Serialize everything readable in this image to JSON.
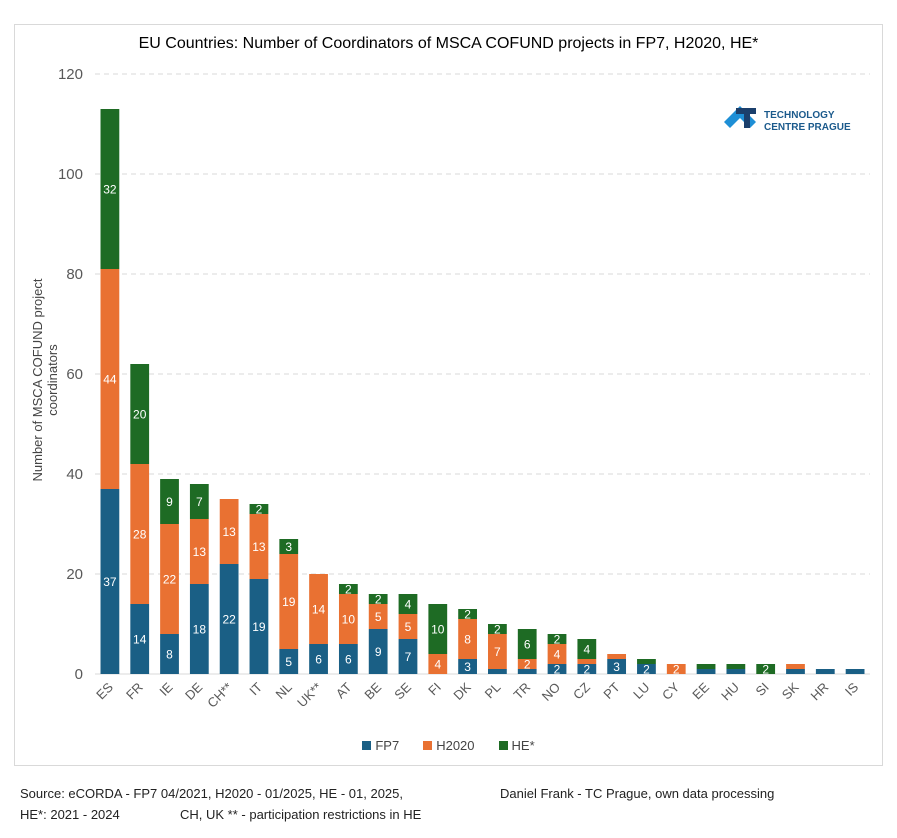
{
  "chart_data": {
    "type": "bar",
    "stacked": true,
    "title": "EU Countries: Number of Coordinators of MSCA COFUND projects in FP7, H2020, HE*",
    "xlabel": "",
    "ylabel": "Number of MSCA COFUND project coordinators",
    "ylim": [
      0,
      120
    ],
    "yticks": [
      0,
      20,
      40,
      60,
      80,
      100,
      120
    ],
    "grid": true,
    "legend_position": "bottom",
    "categories": [
      "ES",
      "FR",
      "IE",
      "DE",
      "CH**",
      "IT",
      "NL",
      "UK**",
      "AT",
      "BE",
      "SE",
      "FI",
      "DK",
      "PL",
      "TR",
      "NO",
      "CZ",
      "PT",
      "LU",
      "CY",
      "EE",
      "HU",
      "SI",
      "SK",
      "HR",
      "IS"
    ],
    "series": [
      {
        "name": "FP7",
        "color": "#1a5f85",
        "values": [
          37,
          14,
          8,
          18,
          22,
          19,
          5,
          6,
          6,
          9,
          7,
          0,
          3,
          1,
          1,
          2,
          2,
          3,
          2,
          0,
          1,
          1,
          0,
          1,
          1,
          1
        ]
      },
      {
        "name": "H2020",
        "color": "#e97132",
        "values": [
          44,
          28,
          22,
          13,
          13,
          13,
          19,
          14,
          10,
          5,
          5,
          4,
          8,
          7,
          2,
          4,
          1,
          1,
          0,
          2,
          0,
          0,
          0,
          1,
          0,
          0
        ]
      },
      {
        "name": "HE*",
        "color": "#1e6b24",
        "values": [
          32,
          20,
          9,
          7,
          0,
          2,
          3,
          0,
          2,
          2,
          4,
          10,
          2,
          2,
          6,
          2,
          4,
          0,
          1,
          0,
          1,
          1,
          2,
          0,
          0,
          0
        ]
      }
    ],
    "show_labels_min": 1
  },
  "logo": {
    "line1": "TECHNOLOGY",
    "line2": "CENTRE PRAGUE"
  },
  "footer": {
    "source": "Source: eCORDA - FP7 04/2021, H2020 - 01/2025, HE - 01, 2025,",
    "author": "Daniel Frank - TC Prague, own data processing",
    "he_note": "HE*: 2021 - 2024",
    "restriction": "CH, UK ** - participation restrictions in HE"
  }
}
